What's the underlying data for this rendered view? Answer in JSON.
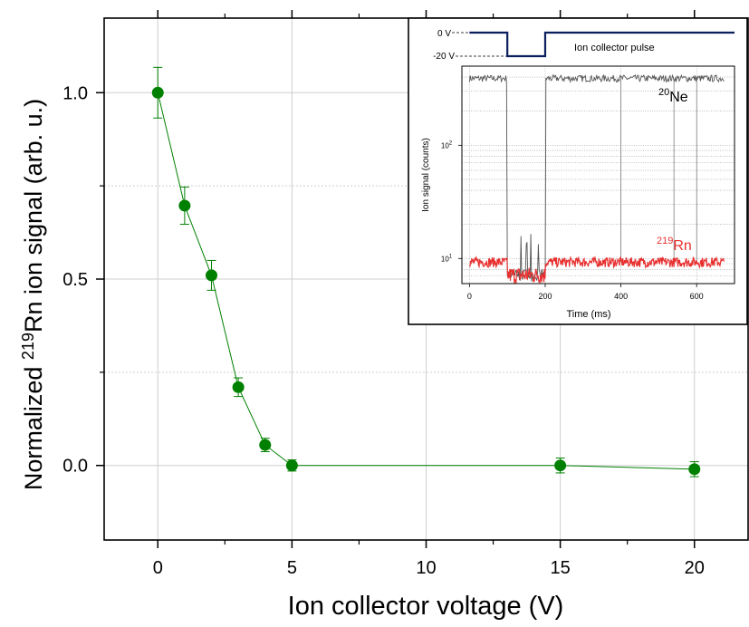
{
  "chart_data": [
    {
      "type": "scatter",
      "xlabel": "Ion collector voltage (V)",
      "ylabel": {
        "pre": "Normalized ",
        "sup": "219",
        "post": "Rn ion signal (arb. u.)"
      },
      "xlim": [
        -2,
        22
      ],
      "ylim": [
        -0.2,
        1.2
      ],
      "x_ticks": [
        0,
        5,
        10,
        15,
        20
      ],
      "x_tick_labels": [
        "0",
        "5",
        "10",
        "15",
        "20"
      ],
      "y_ticks": [
        0.0,
        0.5,
        1.0
      ],
      "y_tick_labels": [
        "0.0",
        "0.5",
        "1.0"
      ],
      "grid": true,
      "series": [
        {
          "color": "#008000",
          "x": [
            0,
            1,
            2,
            3,
            4,
            5,
            15,
            20
          ],
          "y": [
            1.0,
            0.697,
            0.51,
            0.21,
            0.055,
            0.0,
            0.0,
            -0.01
          ],
          "err": [
            0.068,
            0.05,
            0.04,
            0.025,
            0.018,
            0.015,
            0.02,
            0.02
          ]
        }
      ]
    },
    {
      "type": "line",
      "xlabel": "Time (ms)",
      "ylabel": "Ion signal (counts)",
      "xlim": [
        -20,
        700
      ],
      "ylim_log": [
        6,
        500
      ],
      "scale_y": "log",
      "x_ticks": [
        0,
        200,
        400,
        600
      ],
      "x_tick_labels": [
        "0",
        "200",
        "400",
        "600"
      ],
      "y_ticks": [
        10,
        100
      ],
      "y_tick_labels": [
        {
          "base": "10",
          "exp": "1"
        },
        {
          "base": "10",
          "exp": "2"
        }
      ],
      "pulse": {
        "label": "Ion collector pulse",
        "level_labels": [
          "0 V",
          "-20 V"
        ],
        "low_start_ms": 100,
        "low_end_ms": 200,
        "color": "#0a1f5c"
      },
      "series": [
        {
          "name": {
            "sup": "20",
            "base": "Ne"
          },
          "color": "#555555",
          "level_high": 390,
          "level_low": 7,
          "gap": [
            100,
            200
          ]
        },
        {
          "name": {
            "sup": "219",
            "base": "Rn"
          },
          "color": "#e83030",
          "level": 9.3,
          "dip": [
            100,
            200
          ],
          "dip_level": 7
        }
      ]
    }
  ]
}
